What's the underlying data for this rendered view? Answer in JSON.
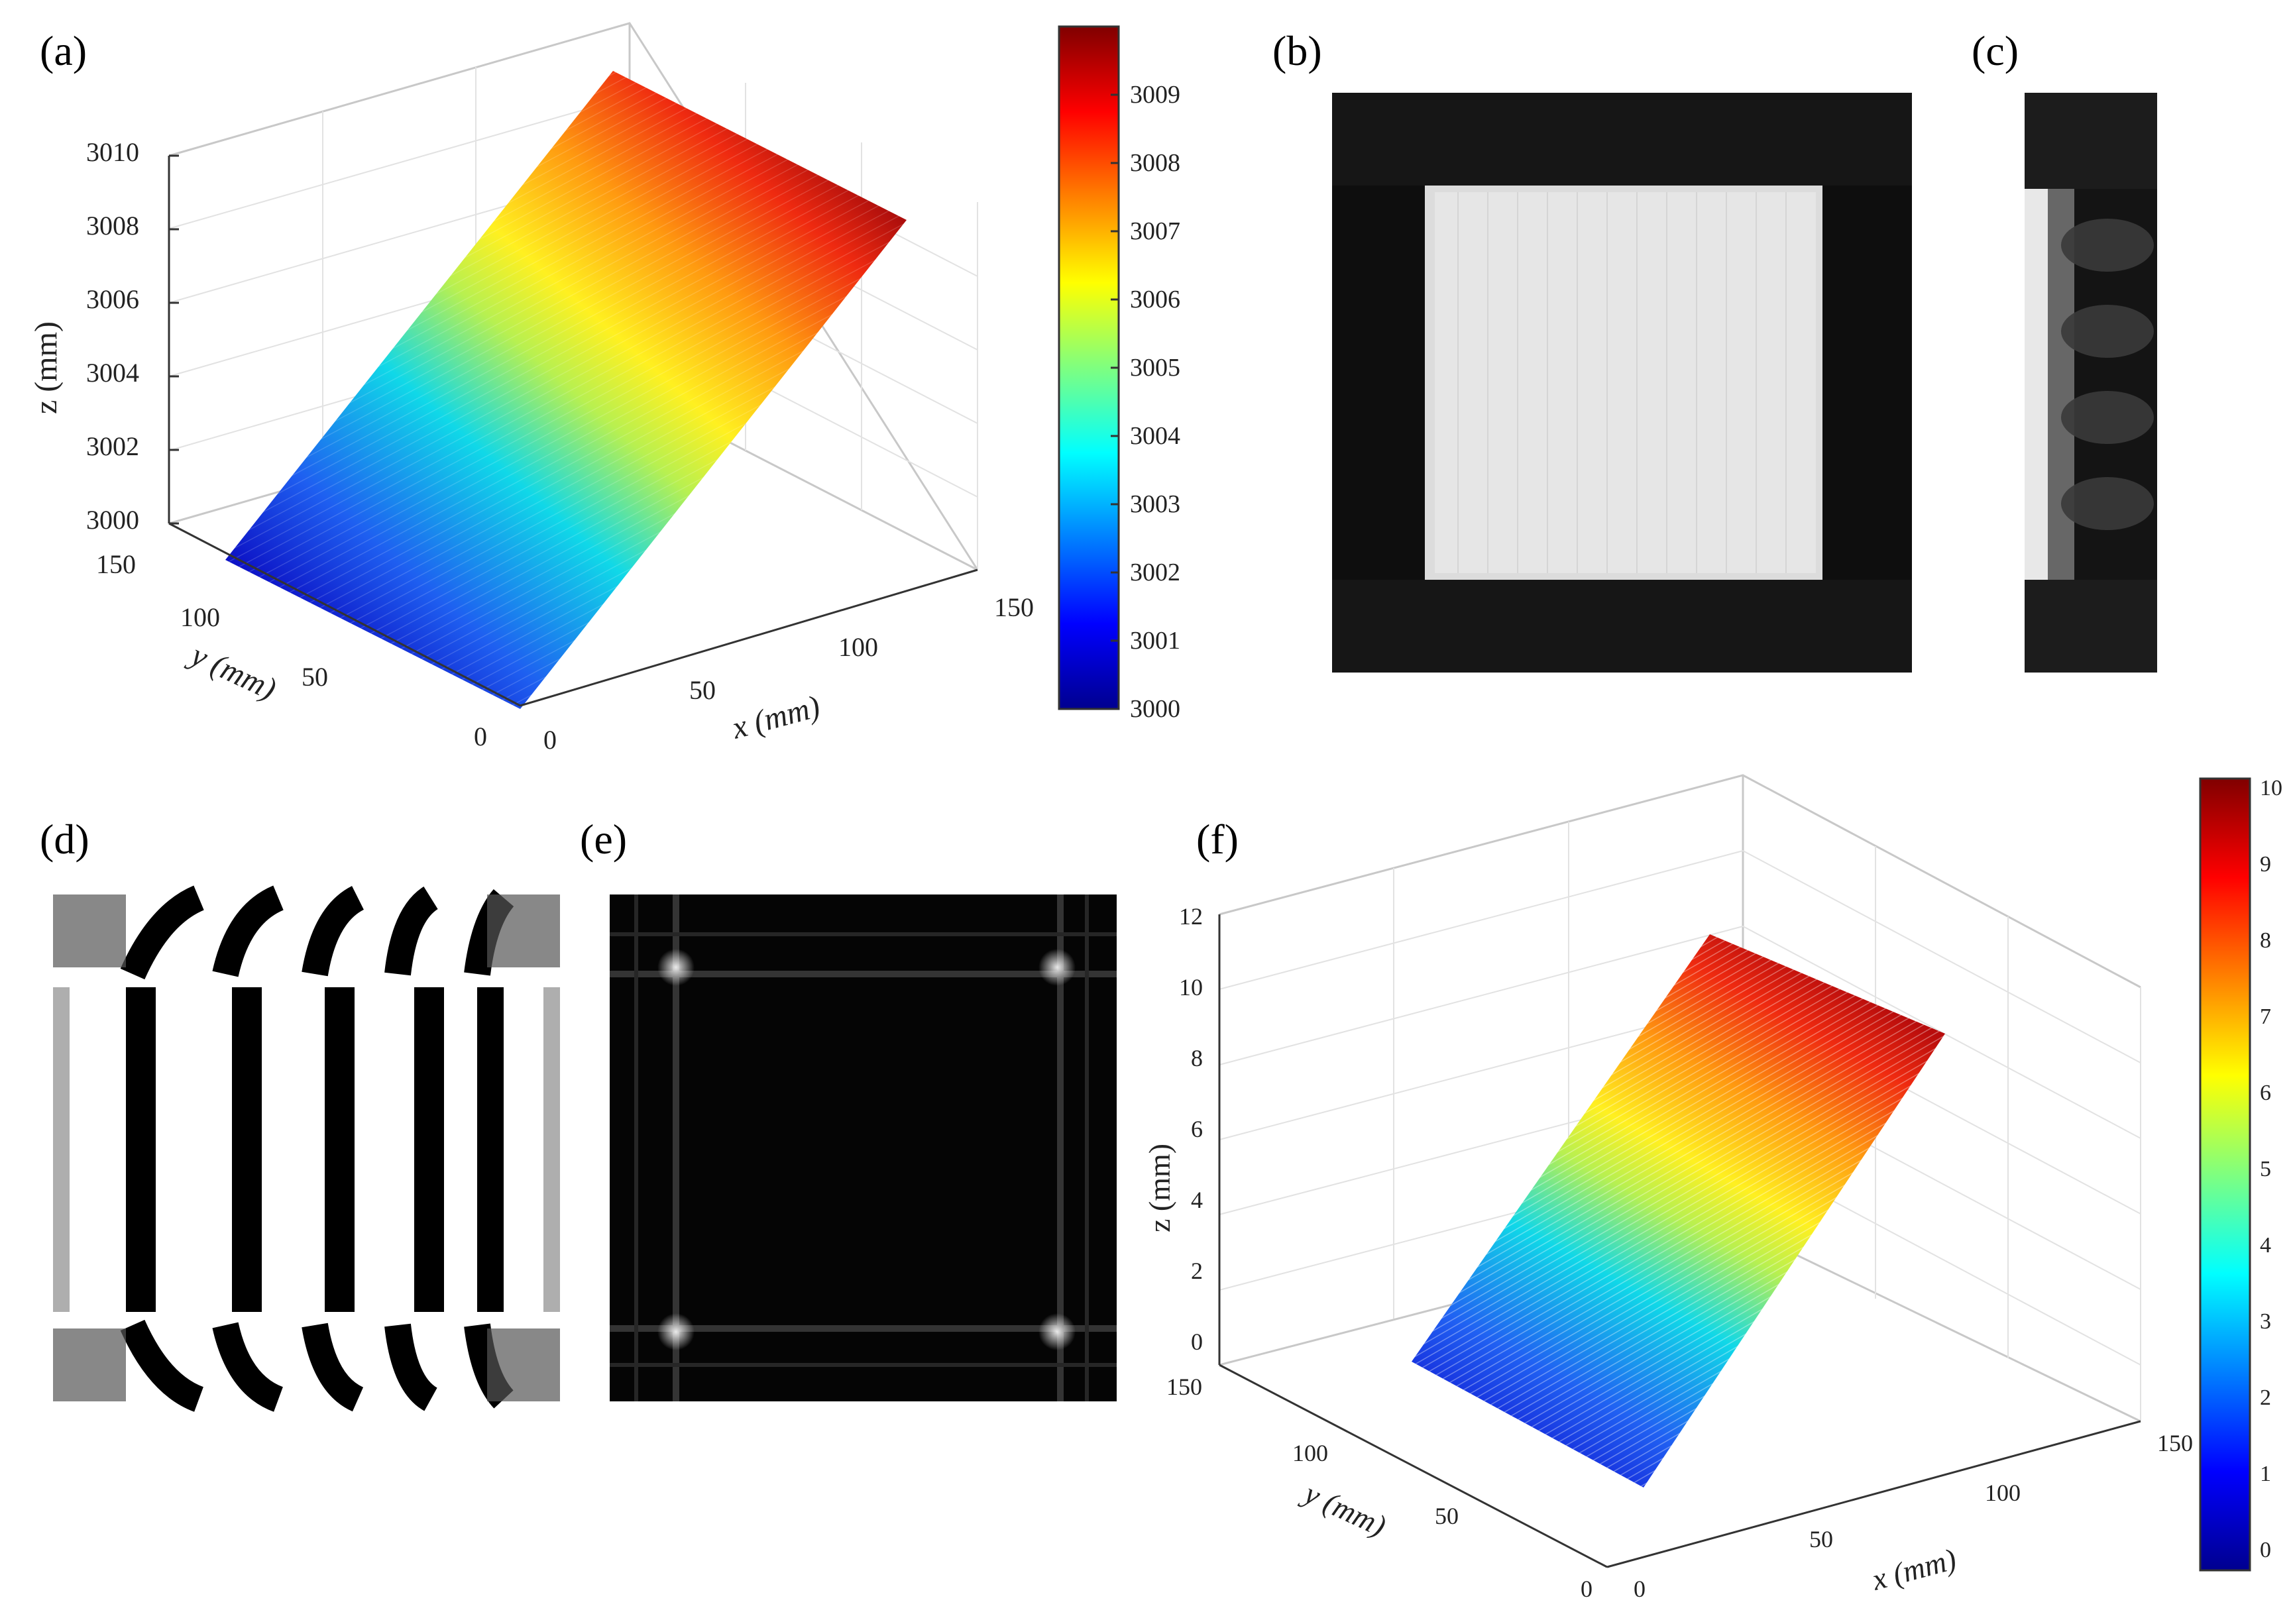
{
  "panel_labels": {
    "a": "(a)",
    "b": "(b)",
    "c": "(c)",
    "d": "(d)",
    "e": "(e)",
    "f": "(f)"
  },
  "chart_data": [
    {
      "panel": "a",
      "type": "surface",
      "xlabel": "x (mm)",
      "ylabel": "y (mm)",
      "zlabel": "z (mm)",
      "xticks": [
        "0",
        "50",
        "100",
        "150"
      ],
      "yticks": [
        "0",
        "50",
        "100",
        "150"
      ],
      "zticks": [
        "3000",
        "3002",
        "3004",
        "3006",
        "3008",
        "3010"
      ],
      "xlim": [
        0,
        150
      ],
      "ylim": [
        0,
        150
      ],
      "zlim": [
        3000,
        3010
      ],
      "surface": "plane, z increases linearly with y from 3000 to 3010",
      "grid": true,
      "colorbar": {
        "ticks": [
          "3000",
          "3001",
          "3002",
          "3003",
          "3004",
          "3005",
          "3006",
          "3007",
          "3008",
          "3009"
        ],
        "range": [
          3000,
          3010
        ],
        "colormap": "jet"
      }
    },
    {
      "panel": "f",
      "type": "surface",
      "xlabel": "x (mm)",
      "ylabel": "y (mm)",
      "zlabel": "z (mm)",
      "xticks": [
        "0",
        "50",
        "100",
        "150"
      ],
      "yticks": [
        "0",
        "50",
        "100",
        "150"
      ],
      "zticks": [
        "0",
        "2",
        "4",
        "6",
        "8",
        "10",
        "12"
      ],
      "xlim": [
        0,
        150
      ],
      "ylim": [
        0,
        150
      ],
      "zlim": [
        0,
        12
      ],
      "surface": "reconstructed plane, z increases linearly from 0 to 10",
      "grid": true,
      "colorbar": {
        "ticks": [
          "0",
          "1",
          "2",
          "3",
          "4",
          "5",
          "6",
          "7",
          "8",
          "9",
          "10"
        ],
        "range": [
          0,
          10.3
        ],
        "colormap": "jet"
      }
    }
  ],
  "images": {
    "b": "square-intensity-image",
    "c": "narrow-strip-image",
    "d": "fringe-pattern-image",
    "e": "edge-residual-image"
  }
}
